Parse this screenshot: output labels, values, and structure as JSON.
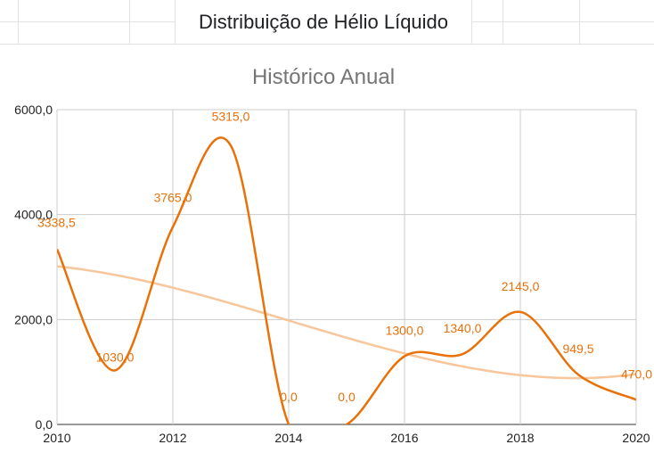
{
  "sheet": {
    "header_text": "Distribuição de Hélio Líquido"
  },
  "colors": {
    "series": "#e8710a",
    "trendline": "#f7c69b",
    "grid": "#cccccc",
    "data_label": "#e8710a"
  },
  "chart_data": {
    "type": "line",
    "title": "Histórico Anual",
    "xlabel": "",
    "ylabel": "",
    "x": [
      2010,
      2011,
      2012,
      2013,
      2014,
      2015,
      2016,
      2017,
      2018,
      2019,
      2020
    ],
    "series": [
      {
        "values": [
          3338.5,
          1030.0,
          3765.0,
          5315.0,
          0.0,
          0.0,
          1300.0,
          1340.0,
          2145.0,
          949.5,
          470.0
        ],
        "labels": [
          "3338,5",
          "1030,0",
          "3765,0",
          "5315,0",
          "0,0",
          "0,0",
          "1300,0",
          "1340,0",
          "2145,0",
          "949,5",
          "470,0"
        ],
        "smooth": true
      }
    ],
    "trendline": {
      "type": "polynomial",
      "color": "light-orange"
    },
    "xlim": [
      2010,
      2020
    ],
    "ylim": [
      0,
      6000
    ],
    "x_ticks": [
      2010,
      2012,
      2014,
      2016,
      2018,
      2020
    ],
    "x_tick_labels": [
      "2010",
      "2012",
      "2014",
      "2016",
      "2018",
      "2020"
    ],
    "y_ticks": [
      0,
      2000,
      4000,
      6000
    ],
    "y_tick_labels": [
      "0,0",
      "2000,0",
      "4000,0",
      "6000,0"
    ],
    "grid": true,
    "legend": "none"
  }
}
